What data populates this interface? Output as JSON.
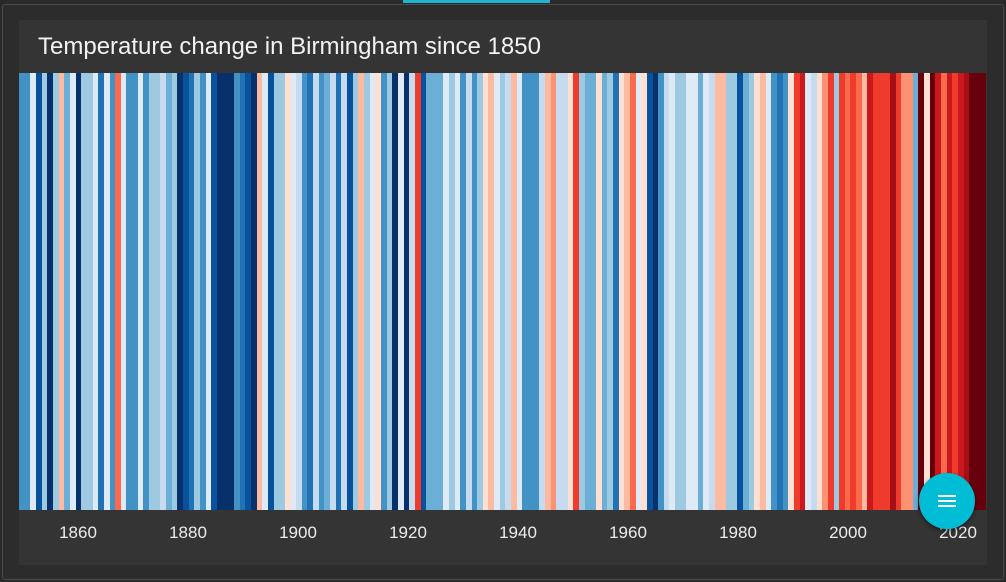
{
  "chart_data": {
    "type": "heatmap",
    "title": "Temperature change in Birmingham since 1850",
    "x_start_year": 1850,
    "xticks": [
      1860,
      1880,
      1900,
      1920,
      1940,
      1960,
      1980,
      2000,
      2020
    ],
    "xtick_labels": [
      "1860",
      "1880",
      "1900",
      "1920",
      "1940",
      "1960",
      "1980",
      "2000",
      "2020"
    ],
    "legend": "none",
    "grid": false,
    "stripe_colors": [
      "#4292c6",
      "#4292c6",
      "#deebf7",
      "#08519c",
      "#9ecae1",
      "#08306b",
      "#9ecae1",
      "#fcbba1",
      "#6baed6",
      "#deebf7",
      "#08306b",
      "#9ecae1",
      "#9ecae1",
      "#deebf7",
      "#2171b5",
      "#deebf7",
      "#4292c6",
      "#fb6a4a",
      "#deebf7",
      "#4292c6",
      "#4292c6",
      "#deebf7",
      "#4292c6",
      "#9ecae1",
      "#9ecae1",
      "#c6dbef",
      "#6baed6",
      "#9ecae1",
      "#08306b",
      "#08519c",
      "#2171b5",
      "#9ecae1",
      "#4292c6",
      "#deebf7",
      "#08519c",
      "#08306b",
      "#08306b",
      "#08306b",
      "#4292c6",
      "#2171b5",
      "#08519c",
      "#08306b",
      "#fcbba1",
      "#deebf7",
      "#08519c",
      "#9ecae1",
      "#9ecae1",
      "#fee0d2",
      "#deebf7",
      "#c6dbef",
      "#4292c6",
      "#2171b5",
      "#c6dbef",
      "#4292c6",
      "#6baed6",
      "#c6dbef",
      "#2171b5",
      "#c6dbef",
      "#08519c",
      "#9ecae1",
      "#fcbba1",
      "#9ecae1",
      "#deebf7",
      "#fee0d2",
      "#4292c6",
      "#9ecae1",
      "#08306b",
      "#deebf7",
      "#08306b",
      "#c6dbef",
      "#ef3b2c",
      "#08519c",
      "#6baed6",
      "#6baed6",
      "#6baed6",
      "#deebf7",
      "#9ecae1",
      "#deebf7",
      "#4292c6",
      "#c6dbef",
      "#4292c6",
      "#9ecae1",
      "#fee0d2",
      "#fcbba1",
      "#deebf7",
      "#9ecae1",
      "#c6dbef",
      "#fcbba1",
      "#deebf7",
      "#4292c6",
      "#4292c6",
      "#4292c6",
      "#c6dbef",
      "#fcbba1",
      "#fc9272",
      "#c6dbef",
      "#c6dbef",
      "#fee0d2",
      "#ef3b2c",
      "#9ecae1",
      "#6baed6",
      "#6baed6",
      "#fee0d2",
      "#6baed6",
      "#9ecae1",
      "#2171b5",
      "#fee0d2",
      "#fcbba1",
      "#fb6a4a",
      "#deebf7",
      "#fee0d2",
      "#08519c",
      "#08306b",
      "#4292c6",
      "#c6dbef",
      "#deebf7",
      "#9ecae1",
      "#9ecae1",
      "#deebf7",
      "#deebf7",
      "#6baed6",
      "#deebf7",
      "#c6dbef",
      "#fcbba1",
      "#fcbba1",
      "#9ecae1",
      "#9ecae1",
      "#08519c",
      "#6baed6",
      "#9ecae1",
      "#fee0d2",
      "#fcbba1",
      "#deebf7",
      "#4292c6",
      "#2171b5",
      "#4292c6",
      "#fee0d2",
      "#ef3b2c",
      "#cb181d",
      "#deebf7",
      "#c6dbef",
      "#fee0d2",
      "#fc9272",
      "#ef3b2c",
      "#9ecae1",
      "#ef3b2c",
      "#fb6a4a",
      "#ef3b2c",
      "#fb6a4a",
      "#fcbba1",
      "#cb181d",
      "#ef3b2c",
      "#ef3b2c",
      "#ef3b2c",
      "#a50f15",
      "#ef3b2c",
      "#fc9272",
      "#fc9272",
      "#6baed6",
      "#67000d",
      "#fee0d2",
      "#67000d",
      "#cb181d",
      "#fb6a4a",
      "#cb181d",
      "#ef3b2c",
      "#cb181d",
      "#a50f15",
      "#67000d",
      "#67000d",
      "#67000d"
    ]
  },
  "colors": {
    "accent": "#00bcd4",
    "background": "#343434"
  },
  "fab": {
    "icon": "menu-icon"
  }
}
